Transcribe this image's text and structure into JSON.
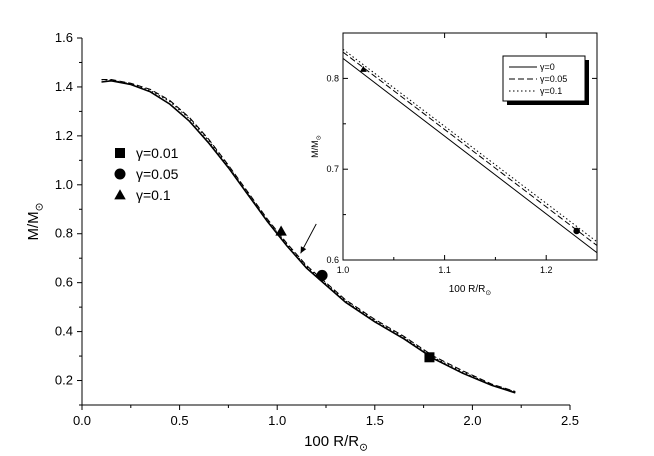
{
  "chart_data": [
    {
      "type": "line",
      "xlabel": "100 R/R",
      "xlabel_sub": "⊙",
      "ylabel": "M/M",
      "ylabel_sub": "⊙",
      "xlim": [
        0.0,
        2.5
      ],
      "ylim": [
        0.1,
        1.6
      ],
      "xticks": [
        "0.0",
        "0.5",
        "1.0",
        "1.5",
        "2.0",
        "2.5"
      ],
      "yticks": [
        "0.2",
        "0.4",
        "0.6",
        "0.8",
        "1.0",
        "1.2",
        "1.4",
        "1.6"
      ],
      "grid": false,
      "legend_position": "left",
      "legend": [
        {
          "marker": "square",
          "label": "γ=0.01"
        },
        {
          "marker": "circle",
          "label": "γ=0.05"
        },
        {
          "marker": "triangle",
          "label": "γ=0.1"
        }
      ],
      "series": [
        {
          "style": "solid",
          "x": [
            0.1,
            0.15,
            0.25,
            0.35,
            0.45,
            0.55,
            0.65,
            0.75,
            0.85,
            0.95,
            1.05,
            1.15,
            1.25,
            1.35,
            1.5,
            1.65,
            1.8,
            1.95,
            2.1,
            2.22
          ],
          "y": [
            1.42,
            1.425,
            1.41,
            1.38,
            1.33,
            1.26,
            1.17,
            1.07,
            0.96,
            0.85,
            0.75,
            0.66,
            0.59,
            0.52,
            0.44,
            0.37,
            0.29,
            0.23,
            0.18,
            0.15
          ]
        },
        {
          "style": "dashed",
          "x": [
            0.1,
            0.15,
            0.25,
            0.35,
            0.45,
            0.55,
            0.65,
            0.75,
            0.85,
            0.95,
            1.05,
            1.15,
            1.25,
            1.35,
            1.5,
            1.65,
            1.8,
            1.95,
            2.1,
            2.22
          ],
          "y": [
            1.43,
            1.43,
            1.415,
            1.39,
            1.345,
            1.275,
            1.185,
            1.08,
            0.97,
            0.86,
            0.76,
            0.67,
            0.6,
            0.53,
            0.45,
            0.38,
            0.3,
            0.24,
            0.185,
            0.155
          ]
        },
        {
          "style": "dotted",
          "x": [
            0.1,
            0.15,
            0.25,
            0.35,
            0.45,
            0.55,
            0.65,
            0.75,
            0.85,
            0.95,
            1.05,
            1.15,
            1.25,
            1.35,
            1.5,
            1.65,
            1.8,
            1.95,
            2.1,
            2.22
          ],
          "y": [
            1.43,
            1.428,
            1.413,
            1.385,
            1.34,
            1.27,
            1.18,
            1.075,
            0.965,
            0.855,
            0.755,
            0.665,
            0.595,
            0.525,
            0.445,
            0.375,
            0.295,
            0.235,
            0.183,
            0.153
          ]
        }
      ],
      "markers": [
        {
          "marker": "square",
          "x": 1.78,
          "y": 0.295
        },
        {
          "marker": "circle",
          "x": 1.23,
          "y": 0.63
        },
        {
          "marker": "triangle",
          "x": 1.02,
          "y": 0.81
        }
      ],
      "annotations": [
        {
          "type": "arrow",
          "from": [
            1.2,
            0.84
          ],
          "to": [
            1.12,
            0.72
          ]
        }
      ]
    },
    {
      "type": "line",
      "role": "inset",
      "xlabel": "100 R/R",
      "xlabel_sub": "⊙",
      "ylabel": "M/M",
      "ylabel_sub": "⊙",
      "xlim": [
        1.0,
        1.25
      ],
      "ylim": [
        0.6,
        0.85
      ],
      "xticks": [
        "1.0",
        "1.1",
        "1.2"
      ],
      "yticks": [
        "0.6",
        "0.7",
        "0.8"
      ],
      "grid": false,
      "legend_position": "top-right",
      "legend": [
        {
          "style": "solid",
          "label": "γ=0"
        },
        {
          "style": "dashed",
          "label": "γ=0.05"
        },
        {
          "style": "dotted",
          "label": "γ=0.1"
        }
      ],
      "series": [
        {
          "style": "solid",
          "x": [
            1.0,
            1.25
          ],
          "y": [
            0.822,
            0.608
          ]
        },
        {
          "style": "dashed",
          "x": [
            1.0,
            1.25
          ],
          "y": [
            0.829,
            0.616
          ]
        },
        {
          "style": "dotted",
          "x": [
            1.0,
            1.25
          ],
          "y": [
            0.832,
            0.62
          ]
        }
      ],
      "markers": [
        {
          "marker": "triangle",
          "x": 1.02,
          "y": 0.81
        },
        {
          "marker": "circle",
          "x": 1.23,
          "y": 0.632
        }
      ]
    }
  ]
}
